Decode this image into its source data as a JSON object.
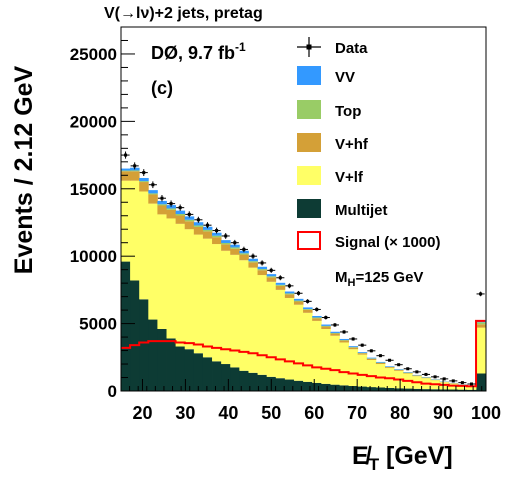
{
  "chart_data": {
    "type": "histogram-stacked",
    "title": "V(→lν)+2 jets, pretag",
    "experiment_label": "DØ, 9.7 fb",
    "experiment_label_sup": "-1",
    "panel_label": "(c)",
    "ylabel": "Events / 2.12 GeV",
    "xlabel_main": "E̸",
    "xlabel_sub": "T",
    "xlabel_rest": " [GeV]",
    "xlim": [
      15,
      100
    ],
    "ylim": [
      0,
      27000
    ],
    "x_ticks": [
      20,
      30,
      40,
      50,
      60,
      70,
      80,
      90,
      100
    ],
    "y_ticks": [
      0,
      5000,
      10000,
      15000,
      20000,
      25000
    ],
    "bin_edges": [
      15.0,
      17.12,
      19.24,
      21.36,
      23.48,
      25.6,
      27.72,
      29.84,
      31.96,
      34.08,
      36.2,
      38.32,
      40.44,
      42.56,
      44.68,
      46.8,
      48.92,
      51.04,
      53.16,
      55.28,
      57.4,
      59.52,
      61.64,
      63.76,
      65.88,
      68.0,
      70.12,
      72.24,
      74.36,
      76.48,
      78.6,
      80.72,
      82.84,
      84.96,
      87.08,
      89.2,
      91.32,
      93.44,
      95.56,
      97.68,
      99.8
    ],
    "series": [
      {
        "name": "Multijet",
        "color": "#0d3b34",
        "values": [
          9600,
          8200,
          6800,
          5300,
          4600,
          3900,
          3300,
          3100,
          2800,
          2500,
          2200,
          2000,
          1750,
          1500,
          1350,
          1200,
          1050,
          950,
          850,
          760,
          680,
          600,
          530,
          470,
          420,
          370,
          330,
          290,
          260,
          230,
          200,
          180,
          160,
          140,
          130,
          120,
          110,
          100,
          90,
          1300
        ]
      },
      {
        "name": "V+lf",
        "color": "#ffff66",
        "values": [
          6000,
          7400,
          8000,
          8600,
          8500,
          8900,
          9100,
          8900,
          8800,
          8800,
          8700,
          8400,
          8350,
          8200,
          7800,
          7400,
          7050,
          6550,
          6050,
          5640,
          5120,
          4600,
          4070,
          3630,
          3180,
          2730,
          2370,
          2010,
          1740,
          1470,
          1300,
          1120,
          940,
          810,
          670,
          530,
          440,
          350,
          260,
          3400
        ]
      },
      {
        "name": "V+hf",
        "color": "#d4a037",
        "values": [
          700,
          700,
          700,
          680,
          660,
          640,
          620,
          590,
          570,
          540,
          510,
          480,
          450,
          420,
          390,
          360,
          330,
          300,
          270,
          240,
          220,
          200,
          180,
          160,
          140,
          120,
          100,
          90,
          80,
          70,
          60,
          50,
          45,
          40,
          35,
          30,
          25,
          20,
          20,
          250
        ]
      },
      {
        "name": "Top",
        "color": "#99cc66",
        "values": [
          50,
          60,
          70,
          80,
          90,
          100,
          110,
          110,
          110,
          110,
          110,
          100,
          100,
          95,
          90,
          85,
          80,
          75,
          70,
          65,
          60,
          55,
          50,
          45,
          40,
          35,
          30,
          28,
          26,
          24,
          22,
          20,
          18,
          16,
          14,
          12,
          11,
          10,
          10,
          150
        ]
      },
      {
        "name": "VV",
        "color": "#3399ff",
        "values": [
          150,
          200,
          230,
          240,
          250,
          250,
          250,
          250,
          240,
          230,
          220,
          210,
          200,
          190,
          180,
          170,
          160,
          150,
          140,
          130,
          120,
          110,
          100,
          90,
          80,
          70,
          60,
          55,
          50,
          45,
          40,
          35,
          30,
          25,
          22,
          20,
          18,
          16,
          14,
          150
        ]
      }
    ],
    "data": {
      "name": "Data",
      "values": [
        17500,
        16700,
        16200,
        15300,
        14300,
        13900,
        13600,
        13100,
        12700,
        12300,
        11900,
        11500,
        11000,
        10500,
        10000,
        9500,
        8950,
        8400,
        7800,
        7250,
        6650,
        6050,
        5450,
        4900,
        4380,
        3860,
        3400,
        2980,
        2620,
        2280,
        1950,
        1650,
        1420,
        1230,
        1050,
        900,
        750,
        620,
        520,
        7200
      ]
    },
    "signal": {
      "name": "Signal (× 1000)",
      "color": "#ff0000",
      "values": [
        3200,
        3400,
        3600,
        3700,
        3700,
        3700,
        3600,
        3550,
        3450,
        3300,
        3200,
        3100,
        3000,
        2900,
        2800,
        2650,
        2500,
        2350,
        2200,
        2050,
        1900,
        1750,
        1650,
        1550,
        1400,
        1300,
        1200,
        1100,
        1000,
        950,
        850,
        750,
        650,
        550,
        500,
        450,
        400,
        380,
        350,
        5200
      ]
    },
    "mass_label": "M",
    "mass_label_sub": "H",
    "mass_label_rest": "=125 GeV",
    "legend_placement": "top-right"
  }
}
